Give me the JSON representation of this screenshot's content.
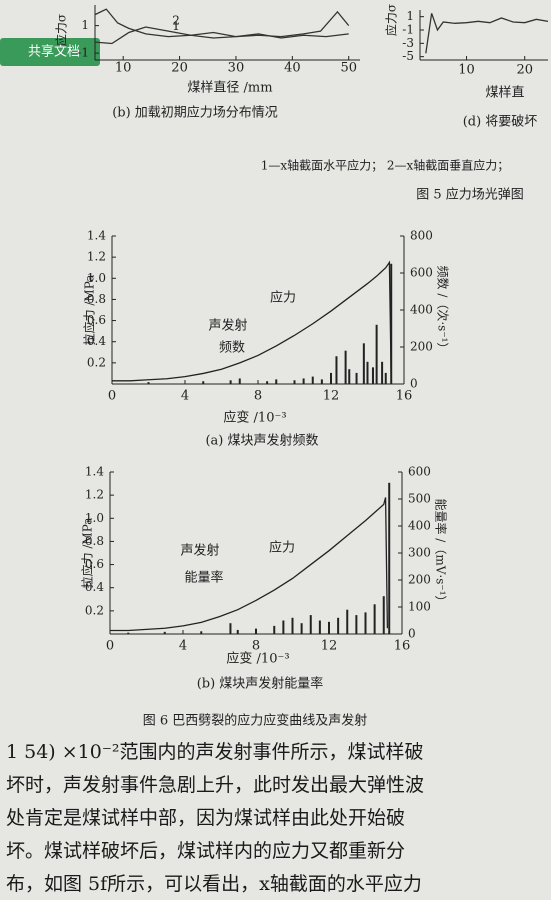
{
  "badge": "共享文档",
  "chart_data": [
    {
      "type": "line",
      "caption": "(b) 加载初期应力场分布情况",
      "x_label": "煤样直径 /mm",
      "y_label": "应力σ",
      "xlim": [
        5,
        52
      ],
      "xticks": [
        10,
        20,
        30,
        40,
        50
      ],
      "ylim": [
        -1.5,
        2.5
      ],
      "yticks": [
        -1,
        1
      ],
      "series": [
        {
          "name": "1",
          "color": "#333",
          "x": [
            5,
            7,
            9,
            11,
            14,
            18,
            22,
            26,
            30,
            34,
            38,
            42,
            45,
            48,
            50
          ],
          "values": [
            1.8,
            2.2,
            1.2,
            0.8,
            0.4,
            0.2,
            0.3,
            0.1,
            0.2,
            0.3,
            0.2,
            0.4,
            0.6,
            2.0,
            1.0
          ]
        },
        {
          "name": "2",
          "color": "#333",
          "x": [
            5,
            8,
            11,
            14,
            18,
            22,
            26,
            30,
            34,
            38,
            42,
            46,
            50
          ],
          "values": [
            -0.2,
            -0.3,
            0.5,
            0.9,
            0.6,
            0.3,
            0.5,
            0.2,
            0.4,
            0.1,
            0.3,
            0.2,
            0.4
          ]
        }
      ]
    },
    {
      "type": "line",
      "caption": "(d) 将要破坏",
      "x_label": "煤样直",
      "y_label": "应力σ",
      "xlim": [
        2,
        24
      ],
      "xticks": [
        10,
        20
      ],
      "ylim": [
        -5.5,
        2
      ],
      "yticks": [
        1,
        -1,
        -3,
        -5
      ],
      "series": [
        {
          "name": null,
          "color": "#333",
          "x": [
            3,
            4,
            5,
            6,
            8,
            10,
            12,
            14,
            16,
            18,
            20,
            22,
            24
          ],
          "values": [
            -4.5,
            1.5,
            -1,
            0.2,
            0,
            0.1,
            0.3,
            0.1,
            0.8,
            0.2,
            0.1,
            0.6,
            0.3
          ]
        }
      ]
    },
    {
      "type": "combo",
      "caption": "(a) 煤块声发射频数",
      "x_label": "应变 /10⁻³",
      "y_label": "拉应力 /MPa",
      "y2_label": "频数 /（次·s⁻¹）",
      "annotations": [
        "应力",
        "声发射",
        "频数"
      ],
      "xlim": [
        0,
        16
      ],
      "xticks": [
        0,
        4,
        8,
        12,
        16
      ],
      "ylim": [
        0,
        1.4
      ],
      "yticks": [
        0.2,
        0.4,
        0.6,
        0.8,
        {
          "value": 1,
          "label": "1.0"
        },
        1.2,
        1.4
      ],
      "y2lim": [
        0,
        800
      ],
      "y2ticks": [
        0,
        200,
        400,
        600,
        800
      ],
      "series": [
        {
          "name": null,
          "color": "#222",
          "x": [
            0,
            1,
            2,
            3,
            4,
            5,
            6,
            7,
            8,
            9,
            10,
            11,
            12,
            13,
            14,
            14.5,
            15,
            15.2,
            15.3
          ],
          "values": [
            0.03,
            0.03,
            0.04,
            0.05,
            0.07,
            0.1,
            0.14,
            0.2,
            0.27,
            0.36,
            0.46,
            0.57,
            0.69,
            0.82,
            0.95,
            1.02,
            1.1,
            1.15,
            0.03
          ]
        }
      ],
      "bars": {
        "axis": "y2",
        "color": "#222",
        "x": [
          2,
          5,
          6.5,
          7,
          8.5,
          9,
          10,
          10.5,
          11,
          11.5,
          12,
          12.3,
          12.8,
          13,
          13.4,
          13.8,
          14,
          14.3,
          14.5,
          14.8,
          15,
          15.3
        ],
        "values": [
          10,
          15,
          20,
          30,
          15,
          25,
          20,
          30,
          40,
          25,
          60,
          150,
          180,
          80,
          60,
          220,
          120,
          90,
          320,
          120,
          60,
          650
        ]
      }
    },
    {
      "type": "combo",
      "caption": "(b) 煤块声发射能量率",
      "x_label": "应变 /10⁻³",
      "y_label": "拉应力 /MPa",
      "y2_label": "能量率 /（mV·s⁻¹）",
      "annotations": [
        "应力",
        "声发射",
        "能量率"
      ],
      "xlim": [
        0,
        16
      ],
      "xticks": [
        0,
        4,
        8,
        12,
        16
      ],
      "ylim": [
        0,
        1.4
      ],
      "yticks": [
        0.2,
        0.4,
        0.6,
        0.8,
        {
          "value": 1,
          "label": "1.0"
        },
        1.2,
        1.4
      ],
      "y2lim": [
        0,
        600
      ],
      "y2ticks": [
        0,
        100,
        200,
        300,
        400,
        500,
        600
      ],
      "series": [
        {
          "name": null,
          "color": "#222",
          "x": [
            0,
            1,
            2,
            3,
            4,
            5,
            6,
            7,
            8,
            9,
            10,
            11,
            12,
            13,
            14,
            14.5,
            15,
            15.1,
            15.2
          ],
          "values": [
            0.03,
            0.03,
            0.04,
            0.05,
            0.07,
            0.1,
            0.15,
            0.21,
            0.29,
            0.38,
            0.48,
            0.6,
            0.72,
            0.85,
            0.98,
            1.05,
            1.12,
            1.18,
            0.05
          ]
        }
      ],
      "bars": {
        "axis": "y2",
        "color": "#222",
        "x": [
          1,
          3,
          5,
          6.6,
          7,
          8,
          9,
          9.5,
          10,
          10.5,
          11,
          11.5,
          12,
          12.5,
          13,
          13.5,
          14,
          14.5,
          15,
          15.3
        ],
        "values": [
          5,
          8,
          10,
          40,
          15,
          20,
          30,
          50,
          60,
          40,
          70,
          50,
          45,
          60,
          90,
          70,
          80,
          110,
          140,
          560
        ]
      }
    }
  ],
  "fig5_legend": "1—x轴截面水平应力；  2—x轴截面垂直应力；",
  "fig5_caption": "图 5   应力场光弹图",
  "fig6_caption": "图 6   巴西劈裂的应力应变曲线及声发射",
  "paragraph": [
    "1 54)  ×10⁻²范围内的声发射事件所示，煤试样破",
    "坏时，声发射事件急剧上升，此时发出最大弹性波",
    "处肯定是煤试样中部，因为煤试样由此处开始破",
    "坏。煤试样破坏后，煤试样内的应力又都重新分",
    "布，如图 5f所示，可以看出，x轴截面的水平应力"
  ]
}
